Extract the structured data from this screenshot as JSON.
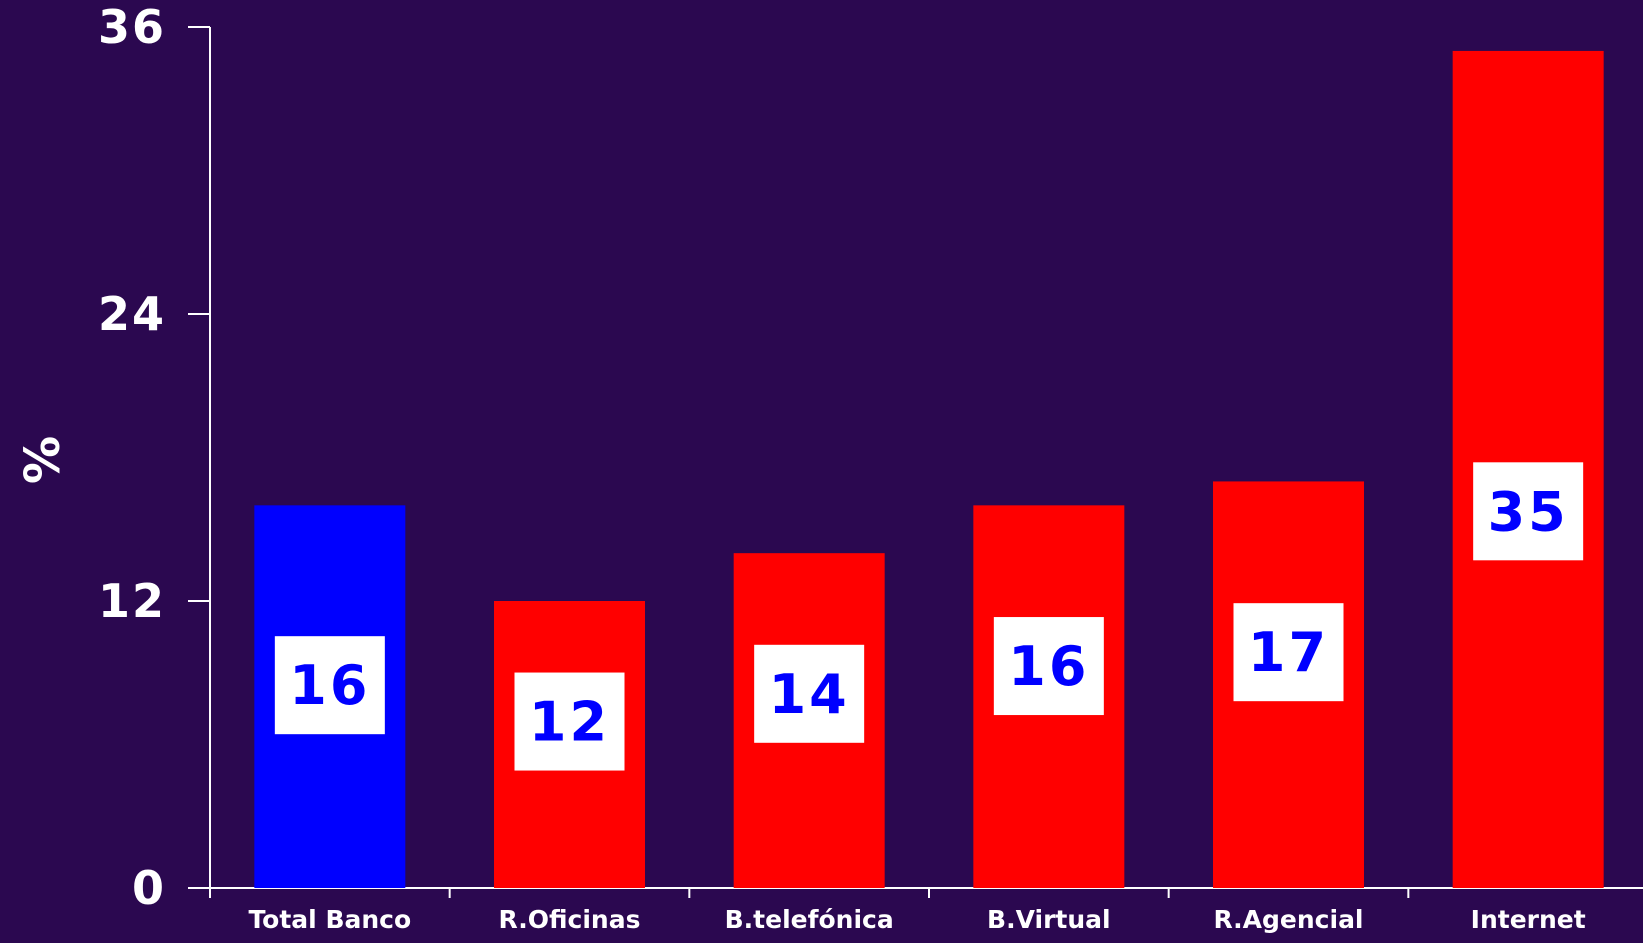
{
  "chart_data": {
    "type": "bar",
    "title": "",
    "xlabel": "",
    "ylabel": "%",
    "ylim": [
      0,
      36
    ],
    "yticks": [
      0,
      12,
      24,
      36
    ],
    "grid": false,
    "legend": "none",
    "categories": [
      "Total Banco",
      "R.Oficinas",
      "B.telefónica",
      "B.Virtual",
      "R.Agencial",
      "Internet"
    ],
    "series": [
      {
        "values": [
          16,
          12,
          14,
          16,
          17,
          35
        ],
        "colors": [
          "#0000ff",
          "#ff0000",
          "#ff0000",
          "#ff0000",
          "#ff0000",
          "#ff0000"
        ]
      }
    ],
    "data_labels": [
      "16",
      "12",
      "14",
      "16",
      "17",
      "35"
    ],
    "colors": {
      "background": "#2b0850",
      "axis": "#ffffff",
      "label_box": "#ffffff",
      "label_text": "#0000ff"
    }
  }
}
